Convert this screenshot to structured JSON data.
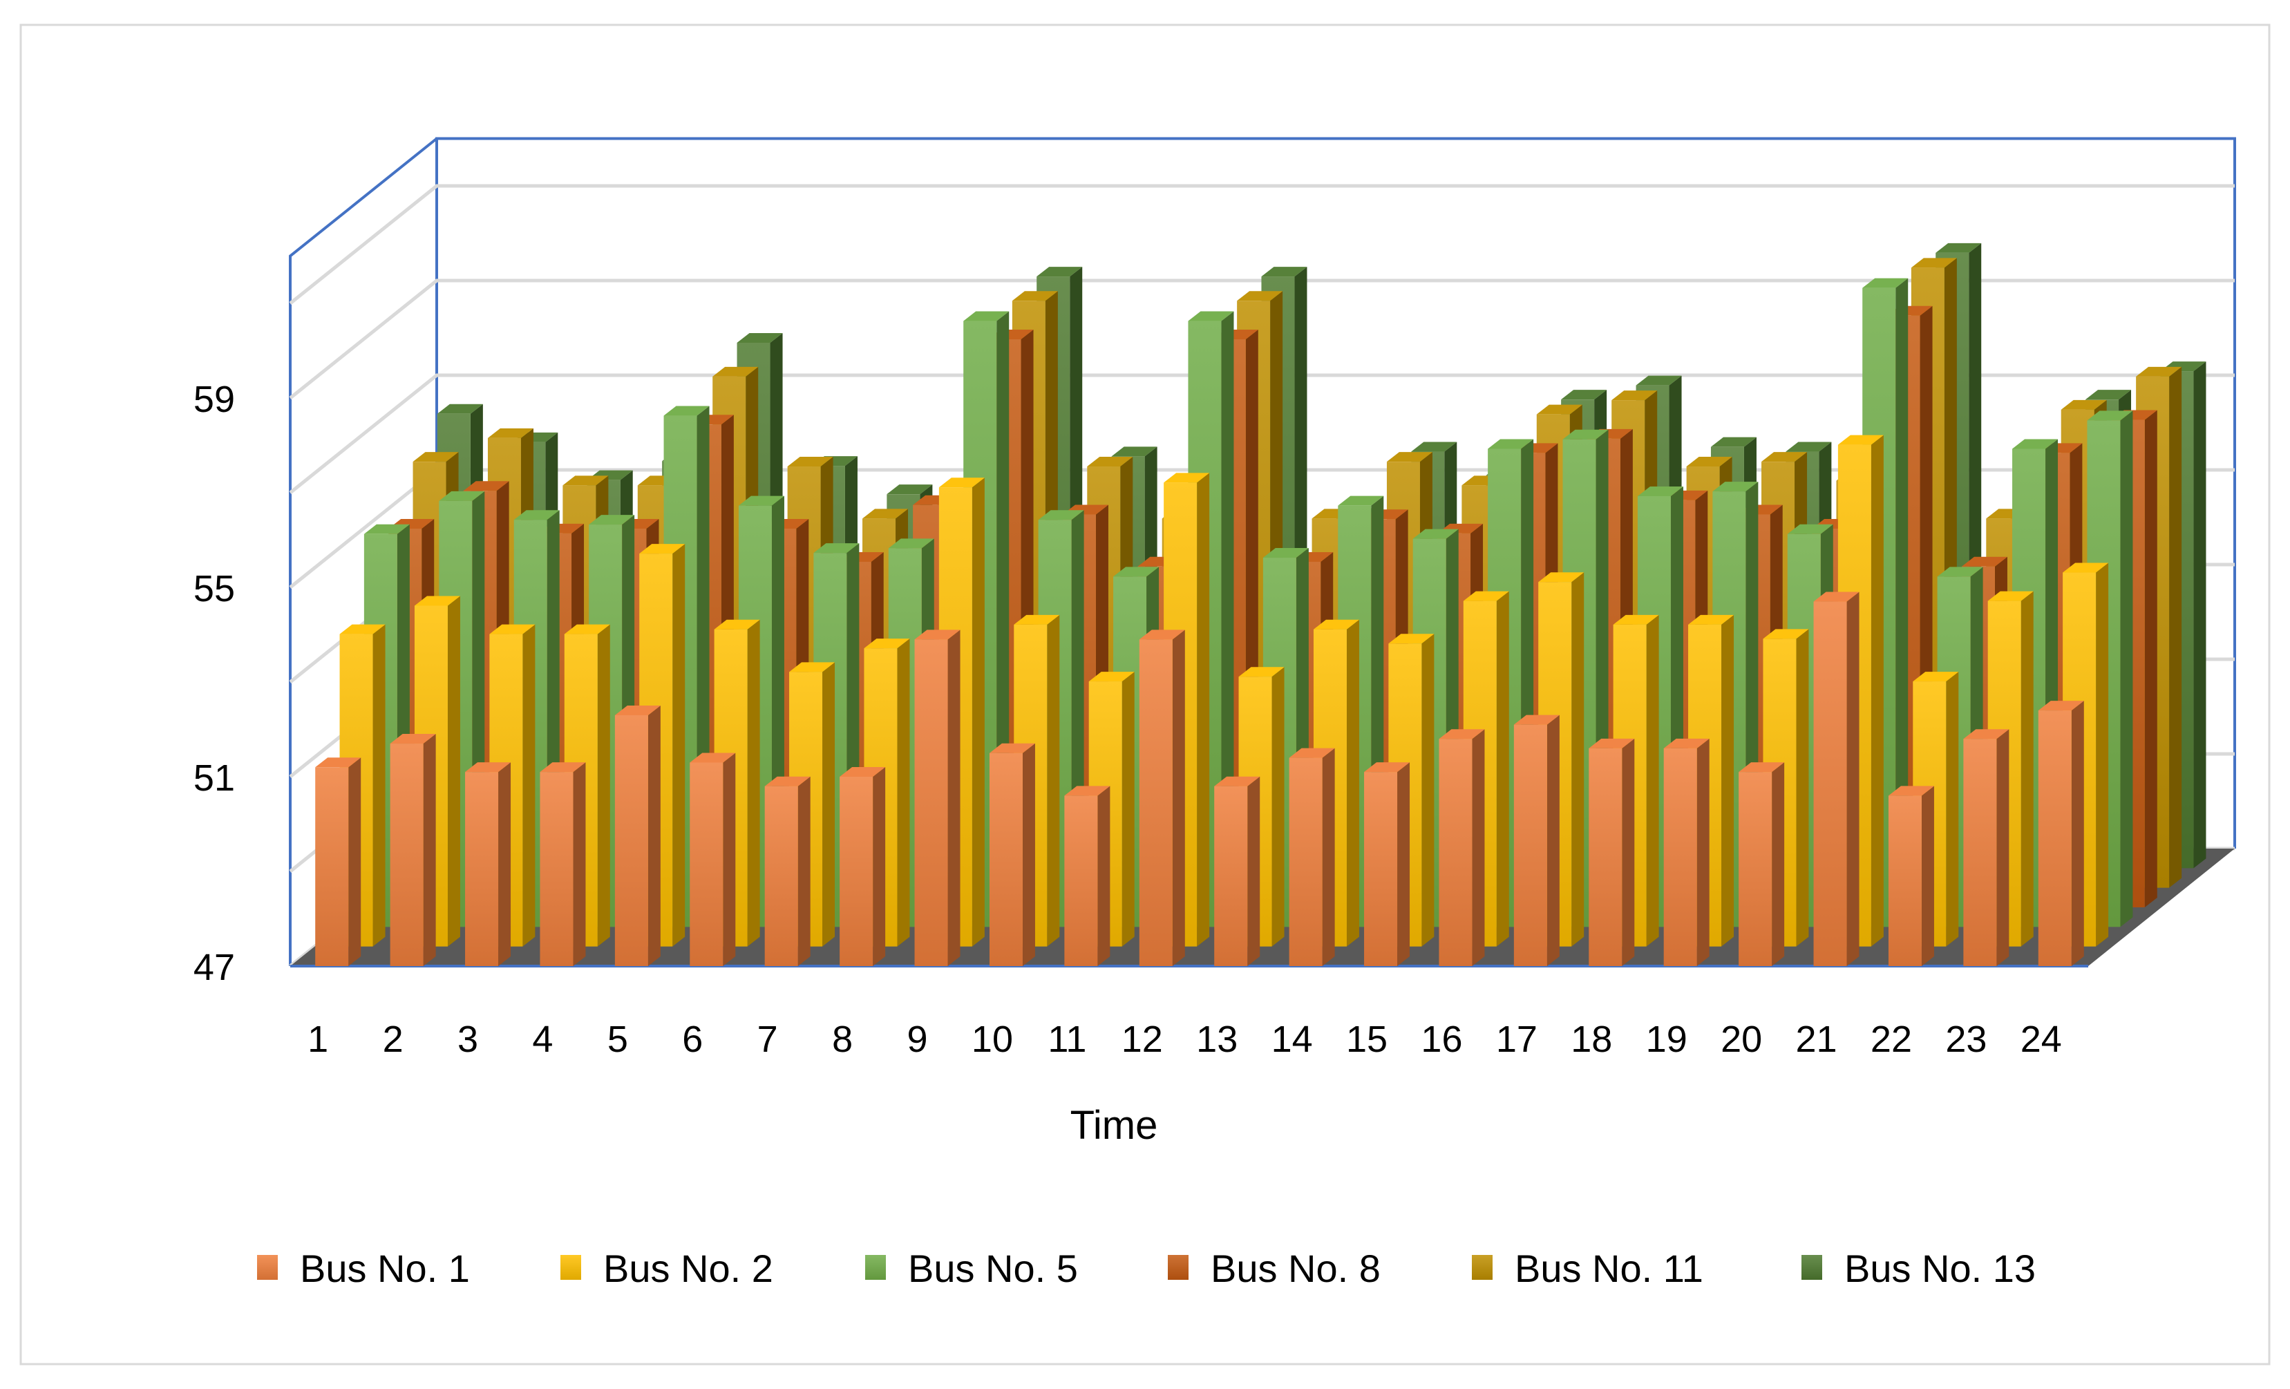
{
  "chart_data": {
    "type": "bar",
    "subtype": "3d-clustered-column",
    "title": "",
    "xlabel": "Time",
    "ylabel": "",
    "ylim": [
      47,
      62
    ],
    "yticks": [
      47,
      51,
      55,
      59
    ],
    "grid": true,
    "legend_position": "bottom",
    "categories": [
      "1",
      "2",
      "3",
      "4",
      "5",
      "6",
      "7",
      "8",
      "9",
      "10",
      "11",
      "12",
      "13",
      "14",
      "15",
      "16",
      "17",
      "18",
      "19",
      "20",
      "21",
      "22",
      "23",
      "24"
    ],
    "series": [
      {
        "name": "Bus No. 1",
        "color": "#F07F3C",
        "values": [
          51.2,
          51.7,
          51.1,
          51.1,
          52.3,
          51.3,
          50.8,
          51.0,
          53.9,
          51.5,
          50.6,
          53.9,
          50.8,
          51.4,
          51.1,
          51.8,
          52.1,
          51.6,
          51.6,
          51.1,
          54.7,
          50.6,
          51.8,
          52.4
        ]
      },
      {
        "name": "Bus No. 2",
        "color": "#FFC000",
        "values": [
          53.6,
          54.2,
          53.6,
          53.6,
          55.3,
          53.7,
          52.8,
          53.3,
          56.7,
          53.8,
          52.6,
          56.8,
          52.7,
          53.7,
          53.4,
          54.3,
          54.7,
          53.8,
          53.8,
          53.5,
          57.6,
          52.6,
          54.3,
          54.9
        ]
      },
      {
        "name": "Bus No. 5",
        "color": "#70AD47",
        "values": [
          55.3,
          56.0,
          55.6,
          55.5,
          57.8,
          55.9,
          54.9,
          55.0,
          59.8,
          55.6,
          54.4,
          59.8,
          54.8,
          55.9,
          55.2,
          57.1,
          57.3,
          56.1,
          56.2,
          55.3,
          60.5,
          54.4,
          57.1,
          57.7
        ]
      },
      {
        "name": "Bus No. 8",
        "color": "#C55A11",
        "values": [
          55.0,
          55.8,
          54.9,
          55.0,
          57.2,
          55.0,
          54.3,
          55.5,
          59.0,
          55.3,
          54.2,
          59.0,
          54.3,
          55.2,
          54.9,
          56.6,
          56.9,
          55.6,
          55.3,
          55.0,
          59.5,
          54.2,
          56.6,
          57.3
        ]
      },
      {
        "name": "Bus No. 11",
        "color": "#BF8F00",
        "values": [
          56.0,
          56.5,
          55.5,
          55.5,
          57.8,
          55.9,
          54.8,
          55.1,
          59.4,
          55.9,
          54.8,
          59.4,
          54.8,
          56.0,
          55.5,
          57.0,
          57.3,
          55.9,
          56.0,
          55.6,
          60.1,
          54.8,
          57.1,
          57.8
        ]
      },
      {
        "name": "Bus No. 13",
        "color": "#4E7A30",
        "values": [
          56.6,
          56.0,
          55.2,
          55.6,
          58.1,
          55.5,
          54.9,
          55.0,
          59.5,
          55.7,
          54.3,
          59.5,
          54.4,
          55.8,
          55.3,
          56.9,
          57.2,
          55.9,
          55.8,
          55.4,
          60.0,
          54.4,
          56.9,
          57.5
        ]
      }
    ]
  }
}
